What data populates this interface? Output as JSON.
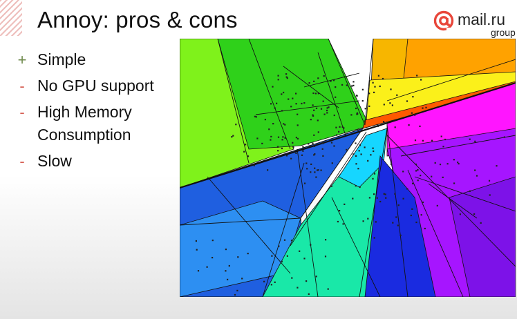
{
  "slide": {
    "title": "Annoy: pros & cons",
    "logo": {
      "name": "mail.ru",
      "sub": "group",
      "icon": "at-sign-icon",
      "color": "#e8463a"
    },
    "bullets": [
      {
        "marker": "+",
        "text": "Simple",
        "kind": "pro",
        "color": "#6f8a4c"
      },
      {
        "marker": "-",
        "text": "No GPU support",
        "kind": "con",
        "color": "#d66055"
      },
      {
        "marker": "-",
        "text": "High Memory Consumption",
        "kind": "con",
        "color": "#d66055"
      },
      {
        "marker": "-",
        "text": "Slow",
        "kind": "con",
        "color": "#d66055"
      }
    ],
    "figure": {
      "description": "space partitioning by random hyperplanes, colored regions with scattered points",
      "icon": "hyperplane-partition-diagram",
      "colors": [
        "#2fd11a",
        "#7ff21b",
        "#f7b600",
        "#fbf01a",
        "#ff5a00",
        "#ff15ff",
        "#a615ff",
        "#7d12e8",
        "#1f5fe0",
        "#2d8ff2",
        "#19e8a8",
        "#16d6ff",
        "#1a2be0"
      ]
    }
  }
}
